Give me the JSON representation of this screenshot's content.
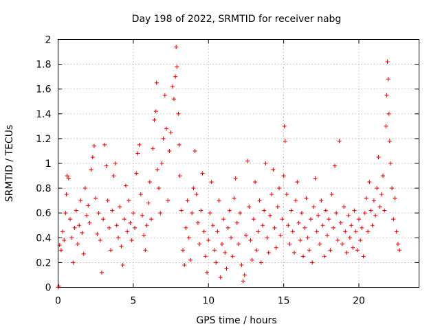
{
  "chart_data": {
    "type": "scatter",
    "title": "Day 198 of 2022, SRMTID for receiver nabg",
    "xlabel": "GPS time / hours",
    "ylabel": "SRMTID / TECUs",
    "xlim": [
      0,
      24
    ],
    "ylim": [
      0,
      2
    ],
    "xticks": [
      0,
      5,
      10,
      15,
      20
    ],
    "xtick_labels": [
      "0",
      "5",
      "10",
      "15",
      "20"
    ],
    "yticks": [
      0,
      0.2,
      0.4,
      0.6,
      0.8,
      1.0,
      1.2,
      1.4,
      1.6,
      1.8,
      2.0
    ],
    "ytick_labels": [
      "0",
      "0.2",
      "0.4",
      "0.6",
      "0.8",
      "1",
      "1.2",
      "1.4",
      "1.6",
      "1.8",
      "2"
    ],
    "grid": true,
    "marker": "plus",
    "series": [
      {
        "name": "SRMTID",
        "color": "#ff0000",
        "points": [
          [
            0.0,
            0.0
          ],
          [
            0.05,
            0.01
          ],
          [
            0.1,
            0.34
          ],
          [
            0.2,
            0.3
          ],
          [
            0.3,
            0.45
          ],
          [
            0.4,
            0.38
          ],
          [
            0.5,
            0.6
          ],
          [
            0.55,
            0.75
          ],
          [
            0.6,
            0.9
          ],
          [
            0.7,
            0.88
          ],
          [
            0.8,
            0.55
          ],
          [
            0.9,
            0.4
          ],
          [
            1.0,
            0.2
          ],
          [
            1.1,
            0.48
          ],
          [
            1.2,
            0.62
          ],
          [
            1.3,
            0.35
          ],
          [
            1.4,
            0.5
          ],
          [
            1.5,
            0.7
          ],
          [
            1.6,
            0.44
          ],
          [
            1.7,
            0.27
          ],
          [
            1.8,
            0.8
          ],
          [
            1.9,
            0.58
          ],
          [
            2.0,
            0.66
          ],
          [
            2.1,
            0.52
          ],
          [
            2.2,
            0.95
          ],
          [
            2.3,
            1.05
          ],
          [
            2.4,
            1.14
          ],
          [
            2.5,
            0.72
          ],
          [
            2.6,
            0.43
          ],
          [
            2.7,
            0.6
          ],
          [
            2.8,
            0.38
          ],
          [
            2.9,
            0.12
          ],
          [
            3.0,
            0.55
          ],
          [
            3.1,
            1.15
          ],
          [
            3.2,
            0.98
          ],
          [
            3.3,
            0.7
          ],
          [
            3.4,
            0.48
          ],
          [
            3.5,
            0.3
          ],
          [
            3.6,
            0.62
          ],
          [
            3.7,
            0.9
          ],
          [
            3.8,
            1.0
          ],
          [
            3.9,
            0.5
          ],
          [
            4.0,
            0.4
          ],
          [
            4.1,
            0.65
          ],
          [
            4.2,
            0.33
          ],
          [
            4.3,
            0.18
          ],
          [
            4.4,
            0.55
          ],
          [
            4.5,
            0.82
          ],
          [
            4.6,
            0.45
          ],
          [
            4.7,
            0.7
          ],
          [
            4.8,
            0.52
          ],
          [
            4.9,
            0.38
          ],
          [
            5.0,
            0.6
          ],
          [
            5.1,
            0.48
          ],
          [
            5.2,
            0.92
          ],
          [
            5.3,
            1.08
          ],
          [
            5.4,
            1.15
          ],
          [
            5.5,
            0.75
          ],
          [
            5.6,
            0.58
          ],
          [
            5.7,
            0.42
          ],
          [
            5.8,
            0.3
          ],
          [
            5.9,
            0.5
          ],
          [
            6.0,
            0.68
          ],
          [
            6.1,
            0.85
          ],
          [
            6.2,
            0.55
          ],
          [
            6.3,
            1.12
          ],
          [
            6.4,
            1.35
          ],
          [
            6.5,
            1.42
          ],
          [
            6.55,
            1.65
          ],
          [
            6.6,
            0.95
          ],
          [
            6.7,
            0.8
          ],
          [
            6.8,
            0.6
          ],
          [
            6.9,
            1.0
          ],
          [
            7.0,
            1.2
          ],
          [
            7.1,
            1.55
          ],
          [
            7.2,
            1.28
          ],
          [
            7.3,
            0.7
          ],
          [
            7.4,
            1.1
          ],
          [
            7.5,
            1.25
          ],
          [
            7.6,
            1.62
          ],
          [
            7.7,
            1.52
          ],
          [
            7.8,
            1.7
          ],
          [
            7.85,
            1.94
          ],
          [
            7.9,
            1.78
          ],
          [
            8.0,
            1.4
          ],
          [
            8.05,
            1.15
          ],
          [
            8.1,
            0.9
          ],
          [
            8.2,
            0.62
          ],
          [
            8.3,
            0.3
          ],
          [
            8.4,
            0.18
          ],
          [
            8.5,
            0.48
          ],
          [
            8.6,
            0.7
          ],
          [
            8.7,
            0.4
          ],
          [
            8.8,
            0.22
          ],
          [
            8.9,
            0.6
          ],
          [
            9.0,
            0.8
          ],
          [
            9.1,
            1.1
          ],
          [
            9.2,
            0.75
          ],
          [
            9.3,
            0.52
          ],
          [
            9.4,
            0.35
          ],
          [
            9.5,
            0.62
          ],
          [
            9.6,
            0.92
          ],
          [
            9.7,
            0.45
          ],
          [
            9.8,
            0.25
          ],
          [
            9.9,
            0.12
          ],
          [
            10.0,
            0.38
          ],
          [
            10.1,
            0.6
          ],
          [
            10.2,
            0.85
          ],
          [
            10.3,
            0.5
          ],
          [
            10.4,
            0.3
          ],
          [
            10.5,
            0.2
          ],
          [
            10.6,
            0.45
          ],
          [
            10.7,
            0.7
          ],
          [
            10.8,
            0.08
          ],
          [
            10.9,
            0.35
          ],
          [
            11.0,
            0.55
          ],
          [
            11.1,
            0.28
          ],
          [
            11.2,
            0.15
          ],
          [
            11.3,
            0.48
          ],
          [
            11.4,
            0.62
          ],
          [
            11.5,
            0.4
          ],
          [
            11.6,
            0.25
          ],
          [
            11.7,
            0.72
          ],
          [
            11.8,
            0.88
          ],
          [
            11.9,
            0.52
          ],
          [
            12.0,
            0.35
          ],
          [
            12.1,
            0.6
          ],
          [
            12.2,
            0.18
          ],
          [
            12.3,
            0.05
          ],
          [
            12.4,
            0.1
          ],
          [
            12.5,
            0.42
          ],
          [
            12.6,
            1.02
          ],
          [
            12.7,
            0.65
          ],
          [
            12.8,
            0.38
          ],
          [
            12.9,
            0.22
          ],
          [
            13.0,
            0.55
          ],
          [
            13.1,
            0.85
          ],
          [
            13.2,
            0.3
          ],
          [
            13.3,
            0.45
          ],
          [
            13.4,
            0.7
          ],
          [
            13.5,
            0.2
          ],
          [
            13.6,
            0.5
          ],
          [
            13.7,
            0.62
          ],
          [
            13.8,
            1.0
          ],
          [
            13.9,
            0.4
          ],
          [
            14.0,
            0.28
          ],
          [
            14.1,
            0.58
          ],
          [
            14.2,
            0.75
          ],
          [
            14.3,
            0.95
          ],
          [
            14.4,
            0.48
          ],
          [
            14.5,
            0.32
          ],
          [
            14.6,
            0.65
          ],
          [
            14.7,
            0.8
          ],
          [
            14.8,
            0.42
          ],
          [
            14.9,
            0.55
          ],
          [
            15.0,
            0.9
          ],
          [
            15.05,
            1.3
          ],
          [
            15.1,
            1.18
          ],
          [
            15.2,
            0.75
          ],
          [
            15.3,
            0.5
          ],
          [
            15.4,
            0.35
          ],
          [
            15.5,
            0.62
          ],
          [
            15.6,
            0.45
          ],
          [
            15.7,
            0.28
          ],
          [
            15.8,
            0.7
          ],
          [
            15.9,
            0.85
          ],
          [
            16.0,
            0.52
          ],
          [
            16.1,
            0.38
          ],
          [
            16.2,
            0.6
          ],
          [
            16.3,
            0.25
          ],
          [
            16.4,
            0.48
          ],
          [
            16.5,
            0.72
          ],
          [
            16.6,
            0.4
          ],
          [
            16.7,
            0.3
          ],
          [
            16.8,
            0.55
          ],
          [
            16.9,
            0.2
          ],
          [
            17.0,
            0.65
          ],
          [
            17.1,
            0.88
          ],
          [
            17.2,
            0.45
          ],
          [
            17.3,
            0.58
          ],
          [
            17.4,
            0.35
          ],
          [
            17.5,
            0.7
          ],
          [
            17.6,
            0.5
          ],
          [
            17.7,
            0.25
          ],
          [
            17.8,
            0.62
          ],
          [
            17.9,
            0.42
          ],
          [
            18.0,
            0.55
          ],
          [
            18.1,
            0.3
          ],
          [
            18.2,
            0.75
          ],
          [
            18.3,
            0.48
          ],
          [
            18.4,
            0.98
          ],
          [
            18.5,
            0.6
          ],
          [
            18.6,
            0.38
          ],
          [
            18.7,
            1.18
          ],
          [
            18.8,
            0.52
          ],
          [
            18.9,
            0.35
          ],
          [
            19.0,
            0.65
          ],
          [
            19.1,
            0.45
          ],
          [
            19.2,
            0.28
          ],
          [
            19.3,
            0.58
          ],
          [
            19.4,
            0.4
          ],
          [
            19.5,
            0.5
          ],
          [
            19.6,
            0.32
          ],
          [
            19.7,
            0.62
          ],
          [
            19.8,
            0.45
          ],
          [
            19.9,
            0.3
          ],
          [
            20.0,
            0.55
          ],
          [
            20.1,
            0.38
          ],
          [
            20.2,
            0.48
          ],
          [
            20.3,
            0.25
          ],
          [
            20.4,
            0.6
          ],
          [
            20.5,
            0.72
          ],
          [
            20.6,
            0.45
          ],
          [
            20.7,
            0.85
          ],
          [
            20.8,
            0.62
          ],
          [
            20.9,
            0.5
          ],
          [
            21.0,
            0.7
          ],
          [
            21.1,
            0.58
          ],
          [
            21.2,
            0.8
          ],
          [
            21.3,
            1.05
          ],
          [
            21.4,
            0.65
          ],
          [
            21.5,
            0.75
          ],
          [
            21.6,
            0.9
          ],
          [
            21.7,
            0.62
          ],
          [
            21.8,
            1.3
          ],
          [
            21.85,
            1.55
          ],
          [
            21.9,
            1.82
          ],
          [
            21.95,
            1.68
          ],
          [
            22.0,
            1.4
          ],
          [
            22.05,
            1.18
          ],
          [
            22.1,
            1.0
          ],
          [
            22.2,
            0.8
          ],
          [
            22.3,
            0.55
          ],
          [
            22.4,
            0.72
          ],
          [
            22.5,
            0.45
          ],
          [
            22.6,
            0.35
          ],
          [
            22.7,
            0.3
          ]
        ]
      }
    ]
  }
}
